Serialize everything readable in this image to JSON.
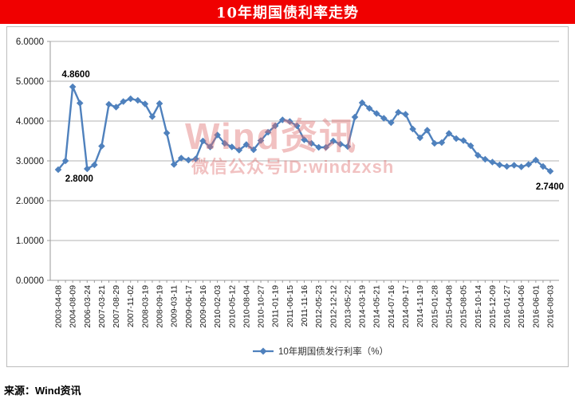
{
  "banner": {
    "title": "10年期国债利率走势",
    "color": "#f00000"
  },
  "watermark": {
    "line1": "Wind资讯",
    "line2": "微信公众号ID:windzxsh",
    "color": "#de6e6e",
    "opacity": 0.42
  },
  "footer": {
    "source": "来源：Wind资讯"
  },
  "colors": {
    "line": "#4F81BD",
    "grid": "#b3b3b3",
    "axis": "#9a9a9a",
    "label_text": "#000000",
    "tick_text": "#1a1a1a",
    "legend_text": "#333333"
  },
  "chart_data": {
    "type": "line",
    "title": "10年期国债利率走势",
    "ylabel": "",
    "xlabel": "",
    "ylim": [
      0,
      6
    ],
    "ytick_labels": [
      "0.0000",
      "1.0000",
      "2.0000",
      "3.0000",
      "4.0000",
      "5.0000",
      "6.0000"
    ],
    "grid": true,
    "legend_position": "bottom",
    "x_label_every": 2,
    "x_tick_labels": [
      "2003-04-08",
      "2004-08-09",
      "2006-03-24",
      "2007-03-21",
      "2007-08-29",
      "2007-11-02",
      "2008-03-19",
      "2008-09-19",
      "2009-03-11",
      "2009-06-17",
      "2009-09-16",
      "2010-02-03",
      "2010-05-12",
      "2010-08-04",
      "2010-10-27",
      "2011-01-19",
      "2011-06-15",
      "2011-11-16",
      "2012-05-23",
      "2012-12-12",
      "2013-05-22",
      "2014-03-19",
      "2014-05-21",
      "2014-07-16",
      "2014-09-17",
      "2014-11-19",
      "2015-01-28",
      "2015-04-08",
      "2015-08-05",
      "2015-10-14",
      "2015-12-09",
      "2016-01-27",
      "2016-04-06",
      "2016-06-01",
      "2016-08-03"
    ],
    "series": [
      {
        "name": "10年期国债发行利率（%）",
        "values": [
          2.78,
          3.0,
          4.86,
          4.45,
          2.8,
          2.9,
          3.37,
          4.42,
          4.35,
          4.49,
          4.56,
          4.52,
          4.43,
          4.11,
          4.44,
          3.7,
          2.91,
          3.07,
          3.02,
          3.05,
          3.5,
          3.35,
          3.65,
          3.44,
          3.35,
          3.27,
          3.41,
          3.28,
          3.51,
          3.72,
          3.88,
          4.03,
          3.99,
          3.88,
          3.53,
          3.44,
          3.34,
          3.34,
          3.5,
          3.42,
          3.36,
          4.1,
          4.46,
          4.32,
          4.19,
          4.07,
          3.96,
          4.22,
          4.17,
          3.8,
          3.58,
          3.77,
          3.44,
          3.46,
          3.69,
          3.56,
          3.51,
          3.38,
          3.14,
          3.04,
          2.97,
          2.9,
          2.86,
          2.89,
          2.85,
          2.91,
          3.02,
          2.86,
          2.74
        ]
      }
    ],
    "annotations": [
      {
        "index": 2,
        "text": "4.8600",
        "position": "above"
      },
      {
        "index": 4,
        "text": "2.8000",
        "position": "below"
      },
      {
        "index": 68,
        "text": "2.7400",
        "position": "below"
      }
    ]
  }
}
